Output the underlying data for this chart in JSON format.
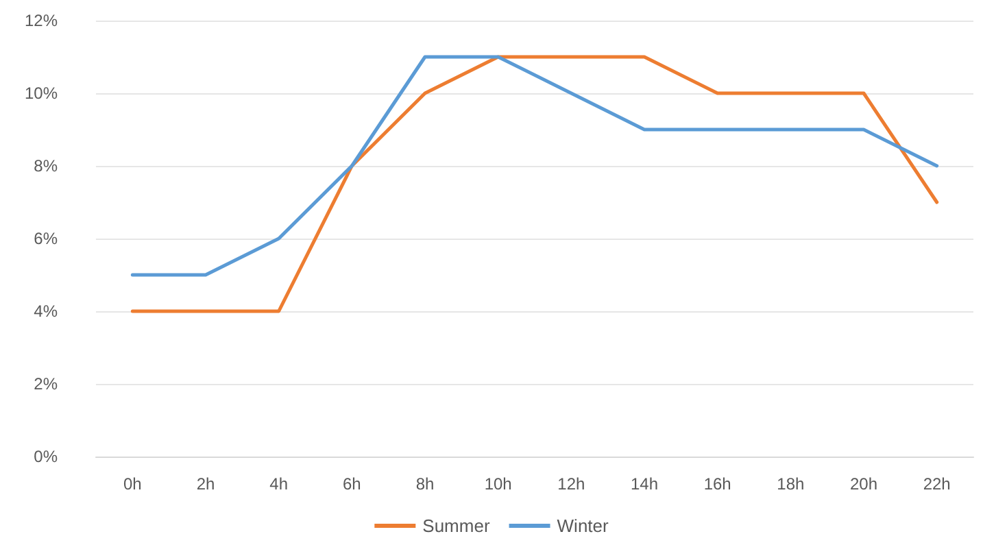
{
  "chart_data": {
    "type": "line",
    "categories": [
      "0h",
      "2h",
      "4h",
      "6h",
      "8h",
      "10h",
      "12h",
      "14h",
      "16h",
      "18h",
      "20h",
      "22h"
    ],
    "series": [
      {
        "name": "Summer",
        "color": "#ed7d31",
        "values": [
          4,
          4,
          4,
          8,
          10,
          11,
          11,
          11,
          10,
          10,
          10,
          7
        ]
      },
      {
        "name": "Winter",
        "color": "#5b9bd5",
        "values": [
          5,
          5,
          6,
          8,
          11,
          11,
          10,
          9,
          9,
          9,
          9,
          8
        ]
      }
    ],
    "ylim": [
      0,
      12
    ],
    "yticks": [
      {
        "value": 0,
        "label": "0%"
      },
      {
        "value": 2,
        "label": "2%"
      },
      {
        "value": 4,
        "label": "4%"
      },
      {
        "value": 6,
        "label": "6%"
      },
      {
        "value": 8,
        "label": "8%"
      },
      {
        "value": 10,
        "label": "10%"
      },
      {
        "value": 12,
        "label": "12%"
      }
    ],
    "grid": "y",
    "legend": "bottom",
    "marker": "none",
    "line_style": "solid"
  }
}
